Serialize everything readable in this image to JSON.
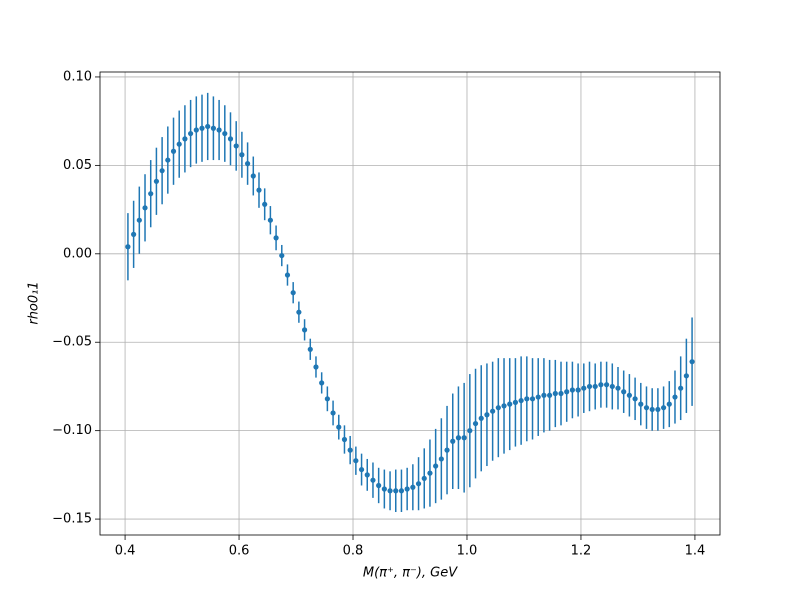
{
  "chart_data": {
    "type": "errorbar",
    "xlabel": "M(π⁺, π⁻), GeV",
    "ylabel": "rho0₁1",
    "xlim": [
      0.356,
      1.444
    ],
    "ylim": [
      -0.159,
      0.1028
    ],
    "xticks": [
      0.4,
      0.6,
      0.8,
      {
        "value": 1,
        "label": "1.0"
      },
      1.2,
      1.4
    ],
    "yticks": [
      {
        "value": -0.15,
        "label": "−0.15"
      },
      {
        "value": -0.1,
        "label": "−0.10"
      },
      {
        "value": -0.05,
        "label": "−0.05"
      },
      {
        "value": 0,
        "label": "0.00"
      },
      0.05,
      {
        "value": 0.1,
        "label": "0.10"
      }
    ],
    "grid": true,
    "x": [
      0.405,
      0.415,
      0.425,
      0.435,
      0.445,
      0.455,
      0.465,
      0.475,
      0.485,
      0.495,
      0.505,
      0.515,
      0.525,
      0.535,
      0.545,
      0.555,
      0.565,
      0.575,
      0.585,
      0.595,
      0.605,
      0.615,
      0.625,
      0.635,
      0.645,
      0.655,
      0.665,
      0.675,
      0.685,
      0.695,
      0.705,
      0.715,
      0.725,
      0.735,
      0.745,
      0.755,
      0.765,
      0.775,
      0.785,
      0.795,
      0.805,
      0.815,
      0.825,
      0.835,
      0.845,
      0.855,
      0.865,
      0.875,
      0.885,
      0.895,
      0.905,
      0.915,
      0.925,
      0.935,
      0.945,
      0.955,
      0.965,
      0.975,
      0.985,
      0.995,
      1.005,
      1.015,
      1.025,
      1.035,
      1.045,
      1.055,
      1.065,
      1.075,
      1.085,
      1.095,
      1.105,
      1.115,
      1.125,
      1.135,
      1.145,
      1.155,
      1.165,
      1.175,
      1.185,
      1.195,
      1.205,
      1.215,
      1.225,
      1.235,
      1.245,
      1.255,
      1.265,
      1.275,
      1.285,
      1.295,
      1.305,
      1.315,
      1.325,
      1.335,
      1.345,
      1.355,
      1.365,
      1.375,
      1.385,
      1.395
    ],
    "series": [
      {
        "color": "#1f77b4",
        "values": [
          0.004,
          0.011,
          0.019,
          0.026,
          0.034,
          0.041,
          0.047,
          0.053,
          0.058,
          0.062,
          0.065,
          0.068,
          0.07,
          0.071,
          0.072,
          0.071,
          0.07,
          0.068,
          0.065,
          0.061,
          0.056,
          0.051,
          0.044,
          0.036,
          0.028,
          0.019,
          0.009,
          -0.001,
          -0.012,
          -0.022,
          -0.033,
          -0.043,
          -0.054,
          -0.064,
          -0.073,
          -0.082,
          -0.09,
          -0.098,
          -0.105,
          -0.111,
          -0.117,
          -0.122,
          -0.125,
          -0.128,
          -0.131,
          -0.133,
          -0.134,
          -0.134,
          -0.134,
          -0.133,
          -0.132,
          -0.13,
          -0.127,
          -0.124,
          -0.12,
          -0.116,
          -0.111,
          -0.106,
          -0.104,
          -0.104,
          -0.1,
          -0.096,
          -0.093,
          -0.091,
          -0.089,
          -0.087,
          -0.086,
          -0.085,
          -0.084,
          -0.083,
          -0.082,
          -0.082,
          -0.081,
          -0.08,
          -0.08,
          -0.079,
          -0.079,
          -0.078,
          -0.077,
          -0.077,
          -0.076,
          -0.075,
          -0.075,
          -0.074,
          -0.074,
          -0.075,
          -0.076,
          -0.078,
          -0.08,
          -0.082,
          -0.085,
          -0.087,
          -0.088,
          -0.088,
          -0.087,
          -0.085,
          -0.081,
          -0.076,
          -0.069,
          -0.061
        ],
        "errors": [
          0.019,
          0.019,
          0.019,
          0.019,
          0.019,
          0.019,
          0.019,
          0.019,
          0.019,
          0.019,
          0.019,
          0.019,
          0.019,
          0.019,
          0.019,
          0.018,
          0.017,
          0.016,
          0.015,
          0.014,
          0.013,
          0.012,
          0.011,
          0.01,
          0.009,
          0.008,
          0.007,
          0.006,
          0.006,
          0.006,
          0.006,
          0.006,
          0.006,
          0.006,
          0.006,
          0.007,
          0.007,
          0.007,
          0.008,
          0.008,
          0.008,
          0.009,
          0.009,
          0.01,
          0.01,
          0.011,
          0.011,
          0.012,
          0.012,
          0.012,
          0.013,
          0.015,
          0.017,
          0.019,
          0.021,
          0.023,
          0.025,
          0.027,
          0.029,
          0.031,
          0.032,
          0.031,
          0.03,
          0.029,
          0.028,
          0.028,
          0.027,
          0.026,
          0.025,
          0.025,
          0.024,
          0.023,
          0.022,
          0.021,
          0.02,
          0.019,
          0.018,
          0.017,
          0.016,
          0.015,
          0.014,
          0.014,
          0.013,
          0.013,
          0.013,
          0.013,
          0.012,
          0.012,
          0.012,
          0.012,
          0.012,
          0.012,
          0.012,
          0.012,
          0.012,
          0.013,
          0.015,
          0.018,
          0.021,
          0.025
        ]
      }
    ]
  }
}
